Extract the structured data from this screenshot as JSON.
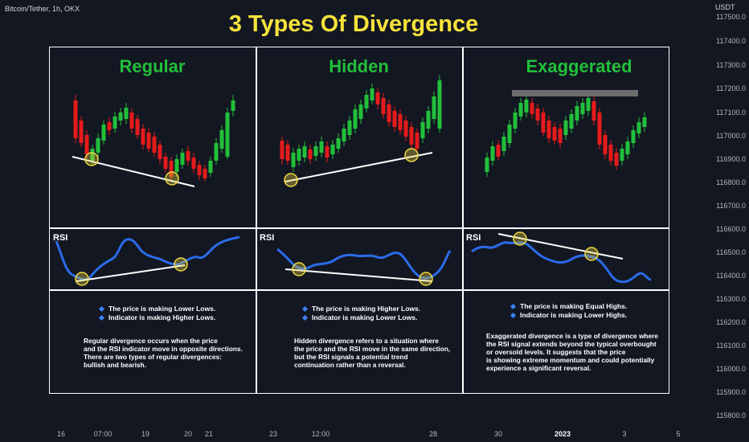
{
  "header": {
    "symbol": "Bitcoin/Tether, 1h, OKX",
    "currency": "USDT"
  },
  "title": "3 Types Of Divergence",
  "price_axis": [
    "117500.0",
    "117400.0",
    "117300.0",
    "117200.0",
    "117100.0",
    "117000.0",
    "116900.0",
    "116800.0",
    "116700.0",
    "116600.0",
    "116500.0",
    "116400.0",
    "116300.0",
    "116200.0",
    "116100.0",
    "116000.0",
    "115900.0",
    "115800.0"
  ],
  "time_axis": [
    "16",
    "07:00",
    "19",
    "20",
    "21",
    "23",
    "12:00",
    "28",
    "30",
    "2023",
    "3",
    "5"
  ],
  "colors": {
    "bull": "#22c03a",
    "bear": "#e51b1b",
    "rsi": "#2a6be8",
    "title": "#f7e23b",
    "marker": "#f0d940",
    "background": "#131722"
  },
  "panels": [
    {
      "title": "Regular",
      "rsi_label": "RSI",
      "bullets": [
        "The price is making Lower Lows.",
        "Indicator is making Higher Lows."
      ],
      "description": "Regular divergence occurs when the price\nand the RSI indicator move in opposite directions.\nThere are two types of regular divergences:\nbullish and bearish."
    },
    {
      "title": "Hidden",
      "rsi_label": "RSI",
      "bullets": [
        "The price is making Higher Lows.",
        "Indicator is making Lower Lows."
      ],
      "description": "Hidden divergence refers to a situation where\nthe price and the RSI move in the same direction,\nbut the RSI signals a potential trend\ncontinuation rather than a reversal."
    },
    {
      "title": "Exaggerated",
      "rsi_label": "RSI",
      "bullets": [
        "The price is making Equal Highs.",
        "Indicator is making Lower Highs."
      ],
      "description": "Exaggerated divergence is a type of divergence where\nthe RSI signal extends beyond the typical overbought\nor oversold levels. It suggests that the price\nis showing extreme momentum and could potentially\nexperience a significant reversal."
    }
  ]
}
